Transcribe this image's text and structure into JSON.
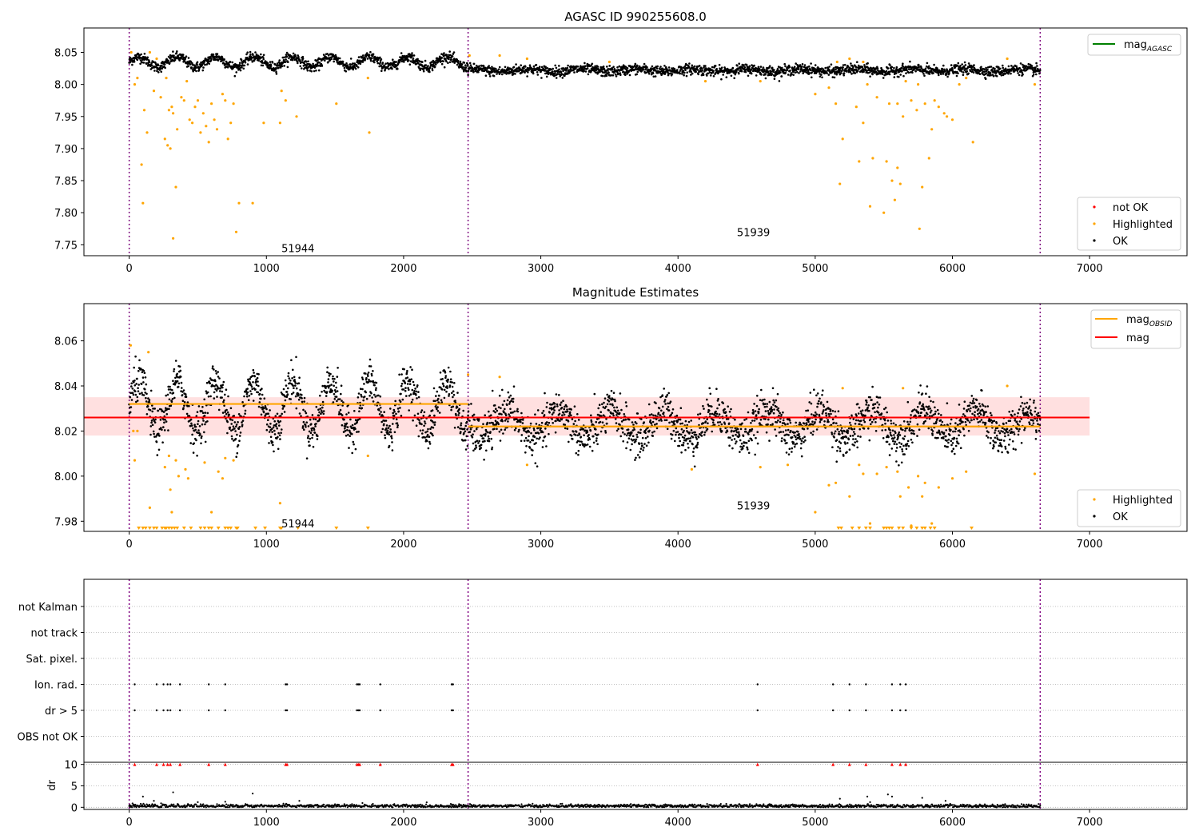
{
  "colors": {
    "ok": "#000000",
    "highlighted": "#ffa500",
    "not_ok": "#ff0000",
    "agasc_line": "#008000",
    "obsid_line": "#ffa500",
    "mag_line": "#ff0000",
    "mag_band": "#ffe0e0",
    "obsid_boundary": "#800080",
    "grid": "#b0b0b0"
  },
  "chart_data": [
    {
      "type": "scatter",
      "title": "AGASC ID 990255608.0",
      "xlim": [
        -330,
        7710
      ],
      "ylim": [
        7.733,
        8.088
      ],
      "xticks": [
        0,
        1000,
        2000,
        3000,
        4000,
        5000,
        6000,
        7000
      ],
      "yticks": [
        7.75,
        7.8,
        7.85,
        7.9,
        7.95,
        8.0,
        8.05
      ],
      "obsid_boundaries": [
        0,
        2470,
        6640
      ],
      "annotations": [
        {
          "text": "51944",
          "x": 1230,
          "y": 7.745
        },
        {
          "text": "51939",
          "x": 4550,
          "y": 7.77
        }
      ],
      "legend_upper": [
        {
          "label": "mag",
          "subscript": "AGASC"
        }
      ],
      "legend_lower": [
        "not OK",
        "Highlighted",
        "OK"
      ],
      "series": [
        {
          "name": "OK",
          "segments": [
            {
              "x": [
                0,
                2470
              ],
              "mean": 8.035,
              "amplitude": 0.008,
              "period": 280,
              "scatter": 0.004
            },
            {
              "x": [
                2470,
                6640
              ],
              "mean": 8.022,
              "amplitude": 0.002,
              "period": 400,
              "scatter": 0.004
            }
          ]
        },
        {
          "name": "Highlighted",
          "points": [
            [
              15,
              8.05
            ],
            [
              40,
              8.0
            ],
            [
              60,
              8.01
            ],
            [
              90,
              7.875
            ],
            [
              100,
              7.815
            ],
            [
              110,
              7.96
            ],
            [
              130,
              7.925
            ],
            [
              150,
              8.05
            ],
            [
              180,
              7.99
            ],
            [
              200,
              8.04
            ],
            [
              230,
              7.98
            ],
            [
              260,
              7.915
            ],
            [
              270,
              8.01
            ],
            [
              280,
              7.905
            ],
            [
              290,
              7.96
            ],
            [
              300,
              7.9
            ],
            [
              310,
              7.965
            ],
            [
              320,
              7.955
            ],
            [
              340,
              7.84
            ],
            [
              350,
              7.93
            ],
            [
              380,
              7.98
            ],
            [
              400,
              7.975
            ],
            [
              420,
              8.005
            ],
            [
              440,
              7.945
            ],
            [
              460,
              7.94
            ],
            [
              480,
              7.965
            ],
            [
              500,
              7.975
            ],
            [
              520,
              7.925
            ],
            [
              540,
              7.955
            ],
            [
              560,
              7.935
            ],
            [
              580,
              7.91
            ],
            [
              600,
              7.97
            ],
            [
              620,
              7.945
            ],
            [
              640,
              7.93
            ],
            [
              680,
              7.985
            ],
            [
              700,
              7.975
            ],
            [
              720,
              7.915
            ],
            [
              740,
              7.94
            ],
            [
              760,
              7.97
            ],
            [
              780,
              7.77
            ],
            [
              800,
              7.815
            ],
            [
              900,
              7.815
            ],
            [
              980,
              7.94
            ],
            [
              1100,
              7.94
            ],
            [
              1110,
              7.99
            ],
            [
              1140,
              7.975
            ],
            [
              1220,
              7.95
            ],
            [
              1510,
              7.97
            ],
            [
              1740,
              8.01
            ],
            [
              1750,
              7.925
            ],
            [
              320,
              7.76
            ],
            [
              2480,
              8.045
            ],
            [
              2700,
              8.045
            ],
            [
              2900,
              8.04
            ],
            [
              3500,
              8.035
            ],
            [
              4200,
              8.005
            ],
            [
              4600,
              8.005
            ],
            [
              5000,
              7.985
            ],
            [
              5100,
              7.995
            ],
            [
              5150,
              7.97
            ],
            [
              5180,
              7.845
            ],
            [
              5200,
              7.915
            ],
            [
              5250,
              8.04
            ],
            [
              5300,
              7.965
            ],
            [
              5320,
              7.88
            ],
            [
              5350,
              7.94
            ],
            [
              5380,
              8.0
            ],
            [
              5400,
              7.81
            ],
            [
              5420,
              7.885
            ],
            [
              5450,
              7.98
            ],
            [
              5500,
              7.8
            ],
            [
              5520,
              7.88
            ],
            [
              5540,
              7.97
            ],
            [
              5560,
              7.85
            ],
            [
              5580,
              7.82
            ],
            [
              5600,
              7.87
            ],
            [
              5620,
              7.845
            ],
            [
              5640,
              7.95
            ],
            [
              5660,
              8.005
            ],
            [
              5700,
              7.975
            ],
            [
              5740,
              7.96
            ],
            [
              5760,
              7.775
            ],
            [
              5780,
              7.84
            ],
            [
              5800,
              7.97
            ],
            [
              5830,
              7.885
            ],
            [
              5850,
              7.93
            ],
            [
              5870,
              7.975
            ],
            [
              5900,
              7.965
            ],
            [
              5940,
              7.955
            ],
            [
              5960,
              7.95
            ],
            [
              6000,
              7.945
            ],
            [
              6050,
              8.0
            ],
            [
              6100,
              8.01
            ],
            [
              6150,
              7.91
            ],
            [
              6400,
              8.04
            ],
            [
              6600,
              8.0
            ],
            [
              5600,
              7.97
            ],
            [
              5750,
              8.0
            ],
            [
              5350,
              8.035
            ],
            [
              5160,
              8.035
            ]
          ]
        }
      ]
    },
    {
      "type": "scatter",
      "title": "Magnitude Estimates",
      "xlim": [
        -330,
        7710
      ],
      "ylim": [
        7.9755,
        8.0765
      ],
      "xticks": [
        0,
        1000,
        2000,
        3000,
        4000,
        5000,
        6000,
        7000
      ],
      "yticks": [
        7.98,
        8.0,
        8.02,
        8.04,
        8.06
      ],
      "obsid_boundaries": [
        0,
        2470,
        6640
      ],
      "mag": 8.026,
      "mag_band": [
        8.018,
        8.035
      ],
      "mag_obsid": [
        {
          "x": [
            0,
            2470
          ],
          "value": 8.032
        },
        {
          "x": [
            2470,
            6640
          ],
          "value": 8.022
        }
      ],
      "annotations": [
        {
          "text": "51944",
          "x": 1230,
          "y": 7.979
        },
        {
          "text": "51939",
          "x": 4550,
          "y": 7.987
        }
      ],
      "legend_upper": [
        {
          "label": "mag",
          "subscript": "OBSID"
        },
        {
          "label": "mag",
          "subscript": ""
        }
      ],
      "legend_lower": [
        "Highlighted",
        "OK"
      ],
      "series": [
        {
          "name": "OK",
          "segments": [
            {
              "x": [
                0,
                2470
              ],
              "mean": 8.031,
              "amplitude": 0.011,
              "period": 280,
              "scatter": 0.0045
            },
            {
              "x": [
                2470,
                6640
              ],
              "mean": 8.023,
              "amplitude": 0.006,
              "period": 380,
              "scatter": 0.0045
            }
          ]
        },
        {
          "name": "Highlighted",
          "points": [
            [
              10,
              8.058
            ],
            [
              30,
              8.02
            ],
            [
              40,
              8.007
            ],
            [
              60,
              8.02
            ],
            [
              140,
              8.055
            ],
            [
              150,
              7.986
            ],
            [
              260,
              8.004
            ],
            [
              290,
              8.009
            ],
            [
              300,
              7.994
            ],
            [
              310,
              7.984
            ],
            [
              340,
              8.007
            ],
            [
              360,
              8.0
            ],
            [
              410,
              8.003
            ],
            [
              430,
              7.999
            ],
            [
              550,
              8.006
            ],
            [
              600,
              7.984
            ],
            [
              650,
              8.002
            ],
            [
              680,
              7.999
            ],
            [
              700,
              8.008
            ],
            [
              760,
              8.007
            ],
            [
              1100,
              7.988
            ],
            [
              1740,
              8.009
            ],
            [
              2470,
              8.045
            ],
            [
              2700,
              8.044
            ],
            [
              2900,
              8.005
            ],
            [
              4100,
              8.003
            ],
            [
              4600,
              8.004
            ],
            [
              4800,
              8.005
            ],
            [
              5000,
              7.984
            ],
            [
              5100,
              7.996
            ],
            [
              5150,
              7.997
            ],
            [
              5200,
              8.039
            ],
            [
              5250,
              7.991
            ],
            [
              5320,
              8.005
            ],
            [
              5350,
              8.001
            ],
            [
              5400,
              7.979
            ],
            [
              5450,
              8.001
            ],
            [
              5520,
              8.004
            ],
            [
              5600,
              8.002
            ],
            [
              5620,
              7.991
            ],
            [
              5640,
              8.039
            ],
            [
              5680,
              7.995
            ],
            [
              5700,
              7.978
            ],
            [
              5750,
              8.0
            ],
            [
              5780,
              7.991
            ],
            [
              5800,
              7.997
            ],
            [
              5850,
              7.979
            ],
            [
              5900,
              7.995
            ],
            [
              6000,
              7.999
            ],
            [
              6100,
              8.002
            ],
            [
              6400,
              8.04
            ],
            [
              6600,
              8.001
            ]
          ]
        },
        {
          "name": "Highlighted-offscale",
          "x": [
            70,
            100,
            120,
            150,
            180,
            200,
            240,
            260,
            270,
            290,
            310,
            330,
            350,
            400,
            450,
            520,
            550,
            580,
            600,
            650,
            700,
            720,
            740,
            780,
            790,
            920,
            990,
            1100,
            1110,
            1230,
            1510,
            1740,
            5170,
            5190,
            5270,
            5320,
            5370,
            5400,
            5500,
            5520,
            5540,
            5560,
            5610,
            5640,
            5700,
            5740,
            5780,
            5800,
            5840,
            5870,
            6140
          ]
        }
      ]
    },
    {
      "type": "scatter",
      "xlim": [
        -330,
        7710
      ],
      "xticks": [
        0,
        1000,
        2000,
        3000,
        4000,
        5000,
        6000,
        7000
      ],
      "obsid_boundaries": [
        0,
        2470,
        6640
      ],
      "flag_categories": [
        "not Kalman",
        "not track",
        "Sat. pixel.",
        "Ion. rad.",
        "dr > 5",
        "OBS not OK"
      ],
      "flags": {
        "Ion. rad.": [
          40,
          200,
          250,
          280,
          300,
          370,
          580,
          700,
          1140,
          1150,
          1660,
          1670,
          1680,
          1830,
          2350,
          2360,
          4580,
          5130,
          5250,
          5370,
          5560,
          5620,
          5660
        ],
        "dr > 5": [
          40,
          200,
          250,
          280,
          300,
          370,
          580,
          700,
          1140,
          1150,
          1660,
          1670,
          1680,
          1830,
          2350,
          2360,
          4580,
          5130,
          5250,
          5370,
          5560,
          5620,
          5660
        ]
      },
      "dr": {
        "ylabel": "dr",
        "ylim": [
          -0.5,
          10.5
        ],
        "yticks": [
          0,
          5,
          10
        ],
        "clipped_at_10_x": [
          40,
          200,
          250,
          280,
          300,
          370,
          580,
          700,
          1140,
          1150,
          1660,
          1670,
          1680,
          1830,
          2350,
          2360,
          4580,
          5130,
          5250,
          5370,
          5560,
          5620,
          5660
        ],
        "baseline": 0.3,
        "spikes": [
          [
            100,
            2.5
          ],
          [
            180,
            1.5
          ],
          [
            320,
            3.5
          ],
          [
            500,
            1.2
          ],
          [
            900,
            3.2
          ],
          [
            1240,
            1.5
          ],
          [
            1700,
            1.0
          ],
          [
            5180,
            2.0
          ],
          [
            5380,
            2.5
          ],
          [
            5530,
            3.0
          ],
          [
            5560,
            2.5
          ],
          [
            5780,
            2.2
          ],
          [
            5950,
            1.5
          ],
          [
            700,
            1.3
          ],
          [
            5400,
            1.2
          ]
        ]
      }
    }
  ]
}
